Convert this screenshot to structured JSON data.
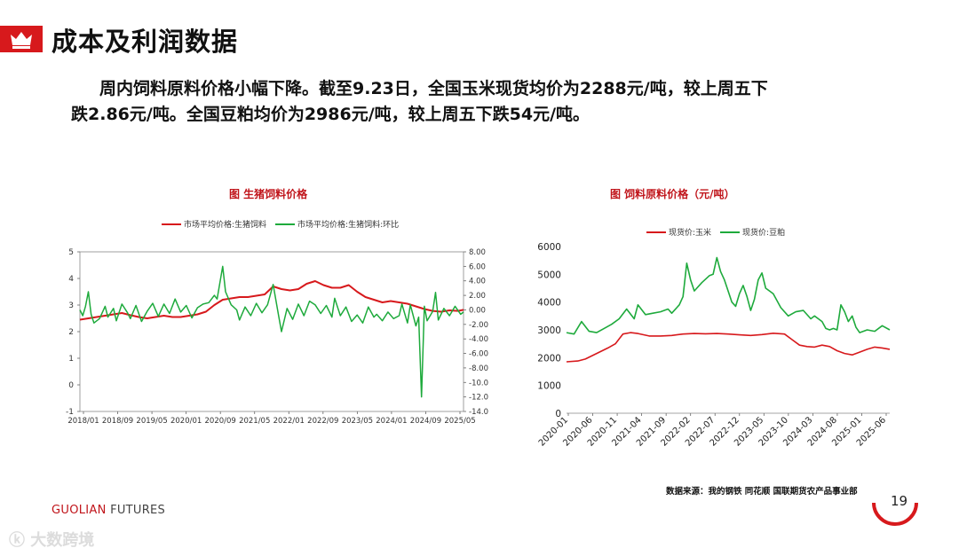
{
  "page": {
    "title": "成本及利润数据",
    "summary_line1": "周内饲料原料价格小幅下降。截至9.23日，全国玉米现货均价为2288元/吨，较上周五下",
    "summary_line2": "跌2.86元/吨。全国豆粕均价为2986元/吨，较上周五下跌54元/吨。",
    "source": "数据来源：我的钢铁  同花顺  国联期货农产品事业部",
    "brand_a": "GUOLIAN",
    "brand_b": "FUTURES",
    "page_number": "19",
    "watermark": "大数跨境",
    "colors": {
      "accent": "#d7191c",
      "red_series": "#d7191c",
      "green_series": "#1eaa3c"
    }
  },
  "chart_data": [
    {
      "type": "line",
      "title": "图  生猪饲料价格",
      "legend": [
        "市场平均价格:生猪饲料",
        "市场平均价格:生猪饲料:环比"
      ],
      "x_ticks": [
        "2018/01",
        "2018/09",
        "2019/05",
        "2020/01",
        "2020/09",
        "2021/05",
        "2022/01",
        "2022/09",
        "2023/05",
        "2024/01",
        "2024/09",
        "2025/05"
      ],
      "y_left": {
        "min": -1,
        "max": 5,
        "ticks": [
          "-1",
          "0",
          "1",
          "2",
          "3",
          "4",
          "5"
        ]
      },
      "y_right": {
        "min": -14,
        "max": 8,
        "ticks": [
          "8.00",
          "6.00",
          "4.00",
          "2.00",
          "0.00",
          "-2.00",
          "-4.00",
          "-6.00",
          "-8.00",
          "-10.00",
          "-12.00",
          "-14.00"
        ]
      },
      "series": [
        {
          "name": "市场平均价格:生猪饲料",
          "axis": "left",
          "points": [
            [
              0,
              2.45
            ],
            [
              3,
              2.5
            ],
            [
              6,
              2.55
            ],
            [
              9,
              2.6
            ],
            [
              12,
              2.65
            ],
            [
              15,
              2.7
            ],
            [
              18,
              2.62
            ],
            [
              21,
              2.55
            ],
            [
              24,
              2.5
            ],
            [
              27,
              2.55
            ],
            [
              30,
              2.6
            ],
            [
              33,
              2.55
            ],
            [
              36,
              2.55
            ],
            [
              39,
              2.6
            ],
            [
              42,
              2.65
            ],
            [
              45,
              2.75
            ],
            [
              48,
              3.0
            ],
            [
              51,
              3.2
            ],
            [
              54,
              3.25
            ],
            [
              57,
              3.3
            ],
            [
              60,
              3.3
            ],
            [
              63,
              3.35
            ],
            [
              66,
              3.4
            ],
            [
              69,
              3.7
            ],
            [
              72,
              3.6
            ],
            [
              75,
              3.55
            ],
            [
              78,
              3.6
            ],
            [
              81,
              3.8
            ],
            [
              84,
              3.9
            ],
            [
              87,
              3.75
            ],
            [
              90,
              3.65
            ],
            [
              93,
              3.65
            ],
            [
              96,
              3.75
            ],
            [
              99,
              3.5
            ],
            [
              102,
              3.3
            ],
            [
              105,
              3.2
            ],
            [
              108,
              3.1
            ],
            [
              111,
              3.15
            ],
            [
              114,
              3.1
            ],
            [
              117,
              3.05
            ],
            [
              120,
              2.95
            ],
            [
              123,
              2.85
            ],
            [
              126,
              2.78
            ],
            [
              129,
              2.75
            ],
            [
              132,
              2.8
            ],
            [
              135,
              2.78
            ],
            [
              137,
              2.82
            ]
          ]
        },
        {
          "name": "市场平均价格:生猪饲料:环比",
          "axis": "right",
          "points": [
            [
              0,
              0.0
            ],
            [
              1,
              -0.8
            ],
            [
              2,
              0.5
            ],
            [
              3,
              2.5
            ],
            [
              4,
              -0.6
            ],
            [
              5,
              -1.8
            ],
            [
              7,
              -1.2
            ],
            [
              9,
              0.5
            ],
            [
              10,
              -1.0
            ],
            [
              12,
              0.2
            ],
            [
              13,
              -1.5
            ],
            [
              15,
              0.8
            ],
            [
              17,
              -0.4
            ],
            [
              18,
              -1.2
            ],
            [
              20,
              0.6
            ],
            [
              22,
              -1.6
            ],
            [
              24,
              -0.2
            ],
            [
              26,
              0.9
            ],
            [
              28,
              -0.9
            ],
            [
              30,
              0.8
            ],
            [
              32,
              -0.5
            ],
            [
              34,
              1.5
            ],
            [
              36,
              -0.3
            ],
            [
              38,
              0.6
            ],
            [
              40,
              -1.1
            ],
            [
              42,
              0.3
            ],
            [
              44,
              0.8
            ],
            [
              46,
              1.0
            ],
            [
              48,
              2.0
            ],
            [
              49,
              1.5
            ],
            [
              51,
              6.0
            ],
            [
              52,
              2.5
            ],
            [
              54,
              0.7
            ],
            [
              56,
              0.0
            ],
            [
              57,
              -1.4
            ],
            [
              59,
              0.4
            ],
            [
              61,
              -0.8
            ],
            [
              63,
              0.9
            ],
            [
              65,
              -0.4
            ],
            [
              67,
              0.7
            ],
            [
              69,
              3.5
            ],
            [
              71,
              -0.9
            ],
            [
              72,
              -3.0
            ],
            [
              74,
              0.2
            ],
            [
              76,
              -1.3
            ],
            [
              78,
              0.8
            ],
            [
              80,
              -0.8
            ],
            [
              82,
              1.2
            ],
            [
              84,
              0.7
            ],
            [
              86,
              -0.5
            ],
            [
              88,
              0.6
            ],
            [
              90,
              -1.0
            ],
            [
              91,
              1.6
            ],
            [
              93,
              -0.8
            ],
            [
              95,
              0.4
            ],
            [
              97,
              -1.6
            ],
            [
              99,
              -0.7
            ],
            [
              101,
              -1.8
            ],
            [
              103,
              0.4
            ],
            [
              105,
              -1.0
            ],
            [
              106,
              -0.6
            ],
            [
              108,
              -1.5
            ],
            [
              110,
              -0.3
            ],
            [
              112,
              -1.2
            ],
            [
              114,
              -0.8
            ],
            [
              115,
              0.8
            ],
            [
              117,
              -1.8
            ],
            [
              118,
              0.7
            ],
            [
              120,
              -2.2
            ],
            [
              121,
              -1.0
            ],
            [
              122,
              -12.0
            ],
            [
              123,
              0.5
            ],
            [
              124,
              -1.5
            ],
            [
              126,
              -0.2
            ],
            [
              127,
              2.4
            ],
            [
              128,
              -1.4
            ],
            [
              130,
              0.2
            ],
            [
              132,
              -0.8
            ],
            [
              134,
              0.5
            ],
            [
              136,
              -0.6
            ],
            [
              137,
              -0.3
            ]
          ]
        }
      ]
    },
    {
      "type": "line",
      "title": "图     饲料原料价格（元/吨）",
      "legend": [
        "现货价:玉米",
        "现货价:豆粕"
      ],
      "x_ticks": [
        "2020-01",
        "2020-06",
        "2020-11",
        "2021-04",
        "2021-09",
        "2022-02",
        "2022-07",
        "2022-12",
        "2023-05",
        "2023-10",
        "2024-03",
        "2024-08",
        "2025-01",
        "2025-06"
      ],
      "y_axis": {
        "min": 0,
        "max": 6000,
        "ticks": [
          "0",
          "1000",
          "2000",
          "3000",
          "4000",
          "5000",
          "6000"
        ]
      },
      "series": [
        {
          "name": "现货价:玉米",
          "points": [
            [
              0,
              1850
            ],
            [
              3,
              1880
            ],
            [
              5,
              1950
            ],
            [
              8,
              2150
            ],
            [
              11,
              2350
            ],
            [
              13,
              2500
            ],
            [
              15,
              2850
            ],
            [
              17,
              2900
            ],
            [
              19,
              2870
            ],
            [
              22,
              2780
            ],
            [
              25,
              2780
            ],
            [
              28,
              2800
            ],
            [
              31,
              2850
            ],
            [
              34,
              2870
            ],
            [
              37,
              2860
            ],
            [
              40,
              2870
            ],
            [
              43,
              2850
            ],
            [
              46,
              2820
            ],
            [
              49,
              2800
            ],
            [
              52,
              2830
            ],
            [
              55,
              2880
            ],
            [
              58,
              2850
            ],
            [
              60,
              2650
            ],
            [
              62,
              2450
            ],
            [
              64,
              2400
            ],
            [
              66,
              2380
            ],
            [
              68,
              2450
            ],
            [
              70,
              2400
            ],
            [
              72,
              2250
            ],
            [
              74,
              2150
            ],
            [
              76,
              2100
            ],
            [
              78,
              2200
            ],
            [
              80,
              2300
            ],
            [
              82,
              2380
            ],
            [
              84,
              2350
            ],
            [
              86,
              2300
            ]
          ]
        },
        {
          "name": "现货价:豆粕",
          "points": [
            [
              0,
              2900
            ],
            [
              2,
              2850
            ],
            [
              4,
              3300
            ],
            [
              6,
              2950
            ],
            [
              8,
              2900
            ],
            [
              10,
              3050
            ],
            [
              12,
              3200
            ],
            [
              14,
              3400
            ],
            [
              16,
              3750
            ],
            [
              18,
              3400
            ],
            [
              19,
              3900
            ],
            [
              21,
              3550
            ],
            [
              23,
              3600
            ],
            [
              25,
              3650
            ],
            [
              27,
              3750
            ],
            [
              28,
              3600
            ],
            [
              30,
              3900
            ],
            [
              31,
              4200
            ],
            [
              32,
              5400
            ],
            [
              33,
              4800
            ],
            [
              34,
              4400
            ],
            [
              36,
              4700
            ],
            [
              38,
              4950
            ],
            [
              39,
              5000
            ],
            [
              40,
              5600
            ],
            [
              41,
              5100
            ],
            [
              42,
              4800
            ],
            [
              43,
              4400
            ],
            [
              44,
              4000
            ],
            [
              45,
              3850
            ],
            [
              46,
              4300
            ],
            [
              47,
              4600
            ],
            [
              48,
              4200
            ],
            [
              49,
              3700
            ],
            [
              50,
              4100
            ],
            [
              51,
              4800
            ],
            [
              52,
              5050
            ],
            [
              53,
              4500
            ],
            [
              54,
              4400
            ],
            [
              55,
              4300
            ],
            [
              57,
              3800
            ],
            [
              59,
              3500
            ],
            [
              61,
              3650
            ],
            [
              63,
              3700
            ],
            [
              65,
              3400
            ],
            [
              66,
              3500
            ],
            [
              67,
              3400
            ],
            [
              68,
              3300
            ],
            [
              69,
              3050
            ],
            [
              70,
              3000
            ],
            [
              71,
              3050
            ],
            [
              72,
              3000
            ],
            [
              73,
              3900
            ],
            [
              74,
              3650
            ],
            [
              75,
              3300
            ],
            [
              76,
              3500
            ],
            [
              77,
              3100
            ],
            [
              78,
              2900
            ],
            [
              80,
              3000
            ],
            [
              82,
              2950
            ],
            [
              84,
              3150
            ],
            [
              86,
              3000
            ]
          ]
        }
      ]
    }
  ]
}
